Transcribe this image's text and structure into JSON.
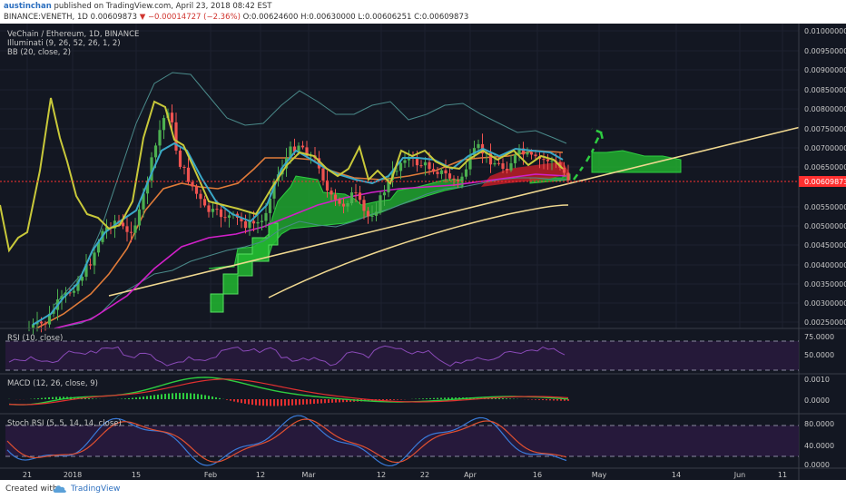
{
  "header": {
    "author": "austinchan",
    "published_text": "published on TradingView.com, April 23, 2018 08:42 EST",
    "symbol": "BINANCE:VENETH, 1D",
    "last_price": "0.00609873",
    "change_arrow": "▼",
    "change": "−0.00014727 (−2.36%)",
    "ohlc": "O:0.00624600 H:0.00630000 L:0.00606251 C:0.00609873"
  },
  "main_pane": {
    "title": "VeChain / Ethereum, 1D, BINANCE",
    "indicator1": "Illuminati (9, 26, 52, 26, 1, 2)",
    "indicator2": "BB (20, close, 2)",
    "price_labels": [
      "0.01000000",
      "0.00950000",
      "0.00900000",
      "0.00850000",
      "0.00800000",
      "0.00750000",
      "0.00700000",
      "0.00650000",
      "0.00550000",
      "0.00500000",
      "0.00450000",
      "0.00400000",
      "0.00350000",
      "0.00300000",
      "0.00250000"
    ],
    "current_price_label": "0.00609873"
  },
  "rsi_pane": {
    "label": "RSI (10, close)",
    "ticks": [
      "75.0000",
      "50.0000"
    ]
  },
  "macd_pane": {
    "label": "MACD (12, 26, close, 9)",
    "ticks": [
      "0.0010",
      "0.0000"
    ]
  },
  "stoch_pane": {
    "label": "Stoch RSI (5, 5, 14, 14, close)",
    "ticks": [
      "80.0000",
      "40.0000",
      "0.0000"
    ]
  },
  "time_axis": [
    "21",
    "2018",
    "15",
    "Feb",
    "12",
    "Mar",
    "12",
    "22",
    "Apr",
    "16",
    "May",
    "14",
    "Jun",
    "11"
  ],
  "footer": {
    "created_with": "Created with",
    "brand": "TradingView"
  },
  "colors": {
    "background": "#131722",
    "up_candle": "#4caf50",
    "down_candle": "#ef5350",
    "tenkan": "#c8c83a",
    "kijun": "#3aa8c8",
    "orange": "#e07b39",
    "magenta": "#d020c8",
    "trendline": "#f0d890",
    "cloud": "#2ecc40",
    "current_price": "#ff3030"
  },
  "chart_data": {
    "type": "line",
    "title": "VeChain / Ethereum, 1D, BINANCE",
    "x": [
      "2017-12-21",
      "2018-01-01",
      "2018-01-15",
      "2018-02-01",
      "2018-02-12",
      "2018-03-01",
      "2018-03-12",
      "2018-03-22",
      "2018-04-01",
      "2018-04-16",
      "2018-04-23"
    ],
    "series": [
      {
        "name": "close",
        "values": [
          0.0023,
          0.0029,
          0.0056,
          0.0058,
          0.0054,
          0.0069,
          0.0053,
          0.0066,
          0.0062,
          0.0065,
          0.00609873
        ]
      }
    ],
    "ylim": [
      0.0022,
      0.0101
    ],
    "last": 0.00609873,
    "ohlc_last": {
      "open": 0.006246,
      "high": 0.0063,
      "low": 0.00606251,
      "close": 0.00609873
    },
    "projection": "dashed green arrow pointing up to ~0.0075 in late April"
  }
}
